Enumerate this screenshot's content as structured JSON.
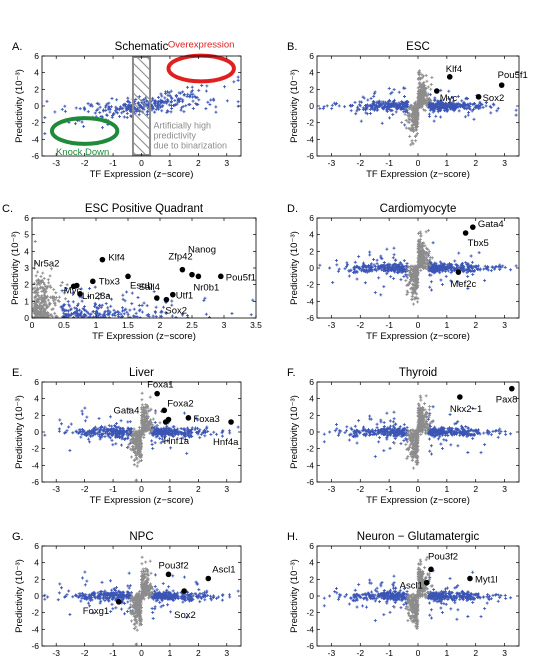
{
  "colors": {
    "blue": "#3b55b5",
    "gray": "#8c8c8c",
    "red": "#e02020",
    "green": "#1f8a3a",
    "hatch": "#8c8c8c",
    "black": "#000000"
  },
  "chart_data": [
    {
      "panel_letter": "A.",
      "title": "Schematic",
      "type": "scatter",
      "xlabel": "TF Expression (z−score)",
      "ylabel": "Predictivity (10⁻³)",
      "xlim": [
        -3.5,
        3.5
      ],
      "ylim": [
        -6,
        6
      ],
      "xticks": [
        "-3",
        "-2",
        "-1",
        "0",
        "1",
        "2",
        "3"
      ],
      "yticks": [
        "-6",
        "-4",
        "-2",
        "0",
        "2",
        "4",
        "6"
      ],
      "series": [
        {
          "color": "blue",
          "shape": "central-spread"
        }
      ],
      "hatched_region": [
        -0.3,
        0.3
      ],
      "ellipses": [
        {
          "label": "Overexpression",
          "cx": 2.1,
          "cy": 4.5,
          "rx": 1.15,
          "ry": 1.55,
          "color": "red"
        },
        {
          "label": "Knock Down",
          "cx": -2.0,
          "cy": -3.0,
          "rx": 1.15,
          "ry": 1.55,
          "color": "green"
        }
      ],
      "annotations": [
        {
          "text": [
            "Artificially high",
            "predictivity",
            "due to binarization"
          ],
          "x": 0.35,
          "y": -2.7,
          "color": "gray"
        }
      ],
      "highlight_points": []
    },
    {
      "panel_letter": "B.",
      "title": "ESC",
      "type": "scatter",
      "xlabel": "TF Expression (z−score)",
      "ylabel": "Predictivity (10⁻³)",
      "xlim": [
        -3.5,
        3.5
      ],
      "ylim": [
        -6,
        6
      ],
      "xticks": [
        "-3",
        "-2",
        "-1",
        "0",
        "1",
        "2",
        "3"
      ],
      "yticks": [
        "-6",
        "-4",
        "-2",
        "0",
        "2",
        "4",
        "6"
      ],
      "series": [
        {
          "color": "blue"
        },
        {
          "color": "gray"
        }
      ],
      "highlight_points": [
        {
          "label": "Klf4",
          "x": 1.1,
          "y": 3.5
        },
        {
          "label": "Myc",
          "x": 0.65,
          "y": 1.8
        },
        {
          "label": "Pou5f1",
          "x": 2.9,
          "y": 2.5
        },
        {
          "label": "Sox2",
          "x": 2.1,
          "y": 1.1
        }
      ]
    },
    {
      "panel_letter": "C.",
      "title": "ESC Positive Quadrant",
      "type": "scatter",
      "xlabel": "TF Expression (z−score)",
      "ylabel": "Predictivity (10⁻³)",
      "xlim": [
        0,
        3.5
      ],
      "ylim": [
        0,
        6
      ],
      "xticks": [
        "0",
        "0.5",
        "1",
        "1.5",
        "2",
        "2.5",
        "3",
        "3.5"
      ],
      "yticks": [
        "0",
        "1",
        "2",
        "3",
        "4",
        "5",
        "6"
      ],
      "series": [
        {
          "color": "blue"
        },
        {
          "color": "gray"
        }
      ],
      "highlight_points": [
        {
          "label": "Nr5a2",
          "x": 0.65,
          "y": 1.9
        },
        {
          "label": "Myc",
          "x": 0.7,
          "y": 1.95
        },
        {
          "label": "Lin28a",
          "x": 0.75,
          "y": 1.45
        },
        {
          "label": "Tbx3",
          "x": 0.95,
          "y": 2.2
        },
        {
          "label": "Klf4",
          "x": 1.1,
          "y": 3.5
        },
        {
          "label": "Esrrb",
          "x": 1.5,
          "y": 2.5
        },
        {
          "label": "Sall4",
          "x": 1.95,
          "y": 1.2
        },
        {
          "label": "Zfp42",
          "x": 2.35,
          "y": 2.9
        },
        {
          "label": "Utf1",
          "x": 2.2,
          "y": 1.4
        },
        {
          "label": "Sox2",
          "x": 2.1,
          "y": 1.1
        },
        {
          "label": "Nanog",
          "x": 2.5,
          "y": 2.6
        },
        {
          "label": "Nr0b1",
          "x": 2.6,
          "y": 2.5
        },
        {
          "label": "Pou5f1",
          "x": 2.95,
          "y": 2.5
        }
      ]
    },
    {
      "panel_letter": "D.",
      "title": "Cardiomyocyte",
      "type": "scatter",
      "xlabel": "TF Expression (z−score)",
      "ylabel": "Predictivity (10⁻³)",
      "xlim": [
        -3.5,
        3.5
      ],
      "ylim": [
        -6,
        6
      ],
      "xticks": [
        "-3",
        "-2",
        "-1",
        "0",
        "1",
        "2",
        "3"
      ],
      "yticks": [
        "-6",
        "-4",
        "-2",
        "0",
        "2",
        "4",
        "6"
      ],
      "series": [
        {
          "color": "blue"
        },
        {
          "color": "gray"
        }
      ],
      "highlight_points": [
        {
          "label": "Gata4",
          "x": 1.9,
          "y": 4.9
        },
        {
          "label": "Tbx5",
          "x": 1.65,
          "y": 4.2
        },
        {
          "label": "Mef2c",
          "x": 1.4,
          "y": -0.5
        }
      ]
    },
    {
      "panel_letter": "E.",
      "title": "Liver",
      "type": "scatter",
      "xlabel": "TF Expression (z−score)",
      "ylabel": "Predictivity (10⁻³)",
      "xlim": [
        -3.5,
        3.5
      ],
      "ylim": [
        -6,
        6
      ],
      "xticks": [
        "-3",
        "-2",
        "-1",
        "0",
        "1",
        "2",
        "3"
      ],
      "yticks": [
        "-6",
        "-4",
        "-2",
        "0",
        "2",
        "4",
        "6"
      ],
      "series": [
        {
          "color": "blue"
        },
        {
          "color": "gray"
        }
      ],
      "highlight_points": [
        {
          "label": "Foxa1",
          "x": 0.55,
          "y": 4.6
        },
        {
          "label": "Foxa2",
          "x": 0.8,
          "y": 2.6
        },
        {
          "label": "Gata4",
          "x": 0.95,
          "y": 1.5
        },
        {
          "label": "Foxa3",
          "x": 1.65,
          "y": 1.7
        },
        {
          "label": "Hnf1a",
          "x": 0.85,
          "y": 1.2
        },
        {
          "label": "Hnf4a",
          "x": 3.15,
          "y": 1.2
        }
      ]
    },
    {
      "panel_letter": "F.",
      "title": "Thyroid",
      "type": "scatter",
      "xlabel": "TF Expression (z−score)",
      "ylabel": "Predictivity (10⁻³)",
      "xlim": [
        -3.5,
        3.5
      ],
      "ylim": [
        -6,
        6
      ],
      "xticks": [
        "-3",
        "-2",
        "-1",
        "0",
        "1",
        "2",
        "3"
      ],
      "yticks": [
        "-6",
        "-4",
        "-2",
        "0",
        "2",
        "4",
        "6"
      ],
      "series": [
        {
          "color": "blue"
        },
        {
          "color": "gray"
        }
      ],
      "highlight_points": [
        {
          "label": "Nkx2−1",
          "x": 1.45,
          "y": 4.2
        },
        {
          "label": "Pax8",
          "x": 3.25,
          "y": 5.2
        }
      ]
    },
    {
      "panel_letter": "G.",
      "title": "NPC",
      "type": "scatter",
      "xlabel": "TF Expression (z−score)",
      "ylabel": "Predictivity (10⁻³)",
      "xlim": [
        -3.5,
        3.5
      ],
      "ylim": [
        -6,
        6
      ],
      "xticks": [
        "-3",
        "-2",
        "-1",
        "0",
        "1",
        "2",
        "3"
      ],
      "yticks": [
        "-6",
        "-4",
        "-2",
        "0",
        "2",
        "4",
        "6"
      ],
      "series": [
        {
          "color": "blue"
        },
        {
          "color": "gray"
        }
      ],
      "highlight_points": [
        {
          "label": "Pou3f2",
          "x": 0.95,
          "y": 2.6
        },
        {
          "label": "Ascl1",
          "x": 2.35,
          "y": 2.1
        },
        {
          "label": "Sox2",
          "x": 1.5,
          "y": 0.6
        },
        {
          "label": "Foxg1",
          "x": -0.8,
          "y": -0.7
        }
      ]
    },
    {
      "panel_letter": "H.",
      "title": "Neuron − Glutamatergic",
      "type": "scatter",
      "xlabel": "TF Expression (z−score)",
      "ylabel": "Predictivity (10⁻³)",
      "xlim": [
        -3.5,
        3.5
      ],
      "ylim": [
        -6,
        6
      ],
      "xticks": [
        "-3",
        "-2",
        "-1",
        "0",
        "1",
        "2",
        "3"
      ],
      "yticks": [
        "-6",
        "-4",
        "-2",
        "0",
        "2",
        "4",
        "6"
      ],
      "series": [
        {
          "color": "blue"
        },
        {
          "color": "gray"
        }
      ],
      "highlight_points": [
        {
          "label": "Pou3f2",
          "x": 0.45,
          "y": 3.2
        },
        {
          "label": "Ascl1",
          "x": 0.3,
          "y": 1.6
        },
        {
          "label": "Myt1l",
          "x": 1.8,
          "y": 2.1
        }
      ]
    }
  ]
}
